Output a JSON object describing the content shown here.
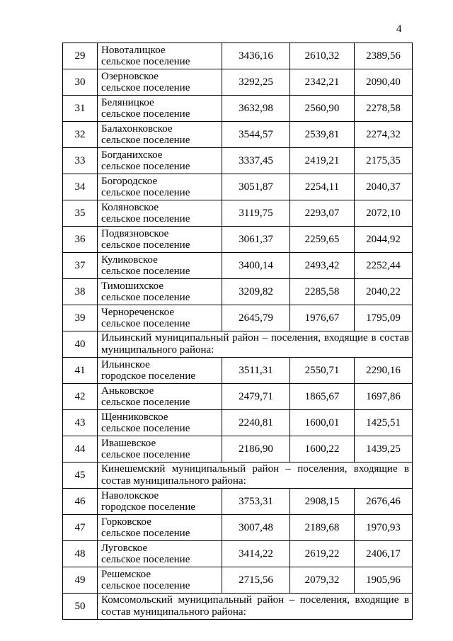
{
  "page": {
    "number": "4"
  },
  "table": {
    "rows": [
      {
        "num": "29",
        "type": "data",
        "name_line1": "Новоталицкое",
        "name_line2": "сельское поселение",
        "v1": "3436,16",
        "v2": "2610,32",
        "v3": "2389,56"
      },
      {
        "num": "30",
        "type": "data",
        "name_line1": "Озерновское",
        "name_line2": "сельское поселение",
        "v1": "3292,25",
        "v2": "2342,21",
        "v3": "2090,40"
      },
      {
        "num": "31",
        "type": "data",
        "name_line1": "Беляницкое",
        "name_line2": "сельское поселение",
        "v1": "3632,98",
        "v2": "2560,90",
        "v3": "2278,58"
      },
      {
        "num": "32",
        "type": "data",
        "name_line1": "Балахонковское",
        "name_line2": "сельское поселение",
        "v1": "3544,57",
        "v2": "2539,81",
        "v3": "2274,32"
      },
      {
        "num": "33",
        "type": "data",
        "name_line1": "Богданихское",
        "name_line2": "сельское поселение",
        "v1": "3337,45",
        "v2": "2419,21",
        "v3": "2175,35"
      },
      {
        "num": "34",
        "type": "data",
        "name_line1": "Богородское",
        "name_line2": "сельское поселение",
        "v1": "3051,87",
        "v2": "2254,11",
        "v3": "2040,37"
      },
      {
        "num": "35",
        "type": "data",
        "name_line1": "Коляновское",
        "name_line2": "сельское поселение",
        "v1": "3119,75",
        "v2": "2293,07",
        "v3": "2072,10"
      },
      {
        "num": "36",
        "type": "data",
        "name_line1": "Подвязновское",
        "name_line2": "сельское поселение",
        "v1": "3061,37",
        "v2": "2259,65",
        "v3": "2044,92"
      },
      {
        "num": "37",
        "type": "data",
        "name_line1": "Куликовское",
        "name_line2": "сельское поселение",
        "v1": "3400,14",
        "v2": "2493,42",
        "v3": "2252,44"
      },
      {
        "num": "38",
        "type": "data",
        "name_line1": "Тимошихское",
        "name_line2": "сельское поселение",
        "v1": "3209,82",
        "v2": "2285,58",
        "v3": "2040,22"
      },
      {
        "num": "39",
        "type": "data",
        "name_line1": "Чернореченское",
        "name_line2": "сельское поселение",
        "v1": "2645,79",
        "v2": "1976,67",
        "v3": "1795,09"
      },
      {
        "num": "40",
        "type": "span",
        "text": "Ильинский муниципальный район – поселения, входящие в состав муниципального района:"
      },
      {
        "num": "41",
        "type": "data",
        "name_line1": "Ильинское",
        "name_line2": "городское поселение",
        "v1": "3511,31",
        "v2": "2550,71",
        "v3": "2290,16"
      },
      {
        "num": "42",
        "type": "data",
        "name_line1": "Аньковское",
        "name_line2": "сельское поселение",
        "v1": "2479,71",
        "v2": "1865,67",
        "v3": "1697,86"
      },
      {
        "num": "43",
        "type": "data",
        "name_line1": "Щенниковское",
        "name_line2": "сельское поселение",
        "v1": "2240,81",
        "v2": "1600,01",
        "v3": "1425,51"
      },
      {
        "num": "44",
        "type": "data",
        "name_line1": "Ивашевское",
        "name_line2": "сельское поселение",
        "v1": "2186,90",
        "v2": "1600,22",
        "v3": "1439,25"
      },
      {
        "num": "45",
        "type": "span",
        "text": "Кинешемский муниципальный район – поселения, входящие в состав муниципального района:"
      },
      {
        "num": "46",
        "type": "data",
        "name_line1": "Наволокское",
        "name_line2": "городское поселение",
        "v1": "3753,31",
        "v2": "2908,15",
        "v3": "2676,46"
      },
      {
        "num": "47",
        "type": "data",
        "name_line1": "Горковское",
        "name_line2": "сельское поселение",
        "v1": "3007,48",
        "v2": "2189,68",
        "v3": "1970,93"
      },
      {
        "num": "48",
        "type": "data",
        "name_line1": "Луговское",
        "name_line2": "сельское поселение",
        "v1": "3414,22",
        "v2": "2619,22",
        "v3": "2406,17"
      },
      {
        "num": "49",
        "type": "data",
        "name_line1": "Решемское",
        "name_line2": "сельское поселение",
        "v1": "2715,56",
        "v2": "2079,32",
        "v3": "1905,96"
      },
      {
        "num": "50",
        "type": "span",
        "text": "Комсомольский муниципальный район – поселения, входящие в состав муниципального района:"
      }
    ]
  }
}
